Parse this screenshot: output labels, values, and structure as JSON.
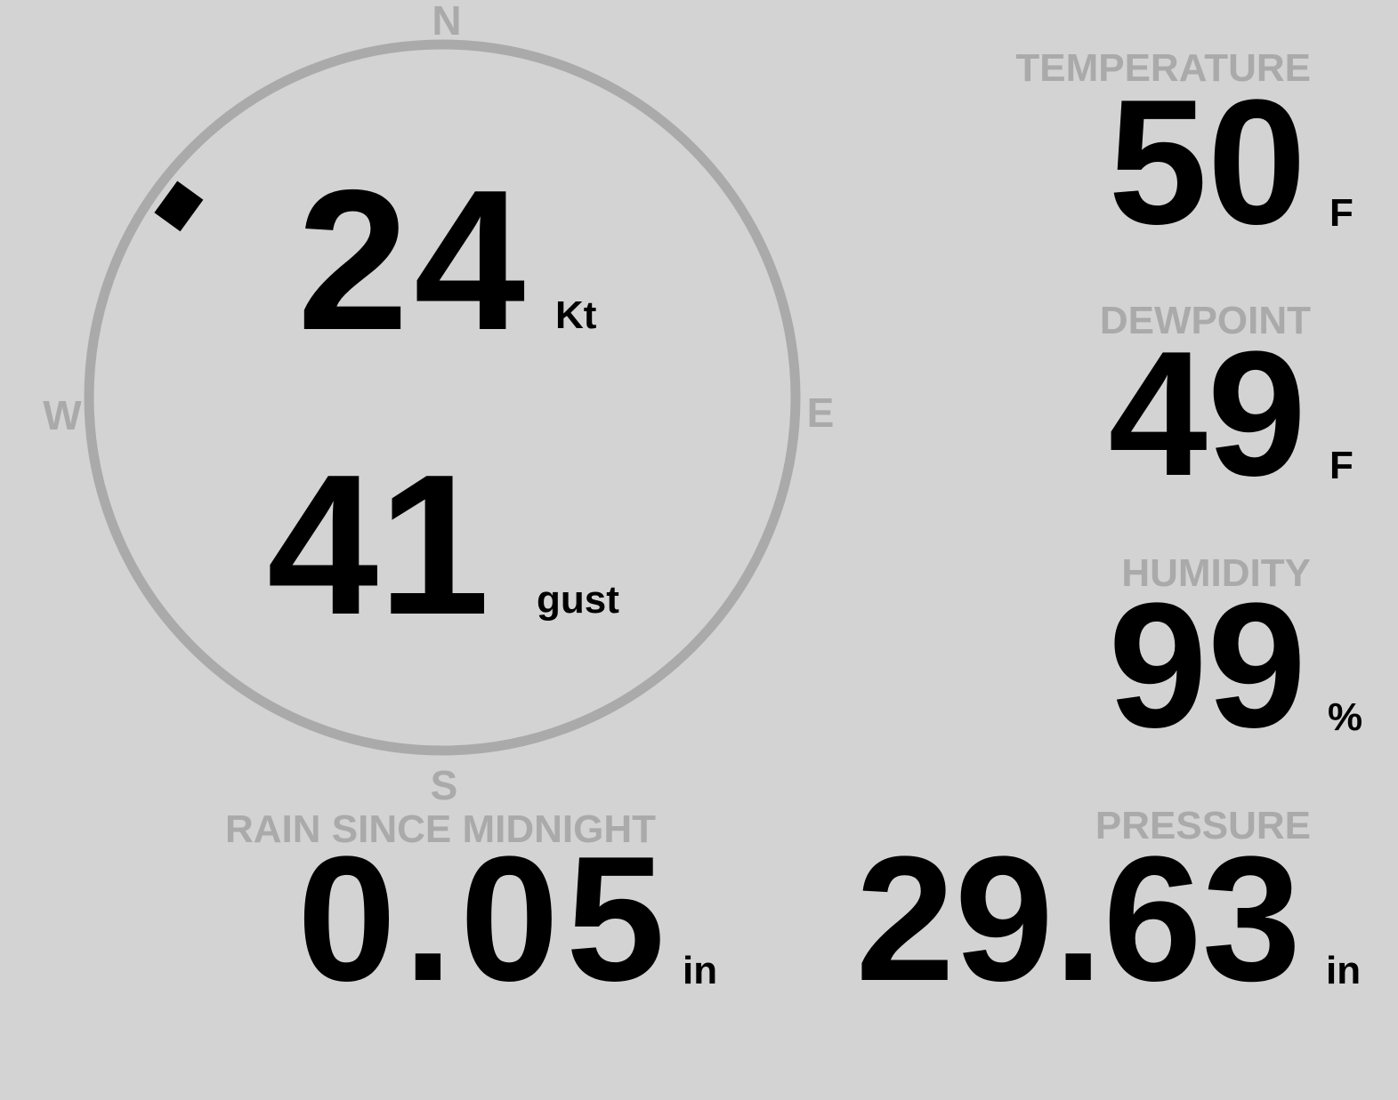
{
  "colors": {
    "background": "#d3d3d3",
    "muted": "#aaaaaa",
    "value": "#000000"
  },
  "compass": {
    "north": "N",
    "south": "S",
    "east": "E",
    "west": "W",
    "wind_direction_deg": 306,
    "marker_icon": "wind-direction-marker"
  },
  "wind": {
    "speed": "24",
    "speed_unit": "Kt",
    "gust": "41",
    "gust_unit": "gust"
  },
  "temperature": {
    "label": "TEMPERATURE",
    "value": "50",
    "unit": "F"
  },
  "dewpoint": {
    "label": "DEWPOINT",
    "value": "49",
    "unit": "F"
  },
  "humidity": {
    "label": "HUMIDITY",
    "value": "99",
    "unit": "%"
  },
  "rain": {
    "label": "RAIN SINCE MIDNIGHT",
    "value": "0.05",
    "unit": "in"
  },
  "pressure": {
    "label": "PRESSURE",
    "value": "29.63",
    "unit": "in"
  }
}
